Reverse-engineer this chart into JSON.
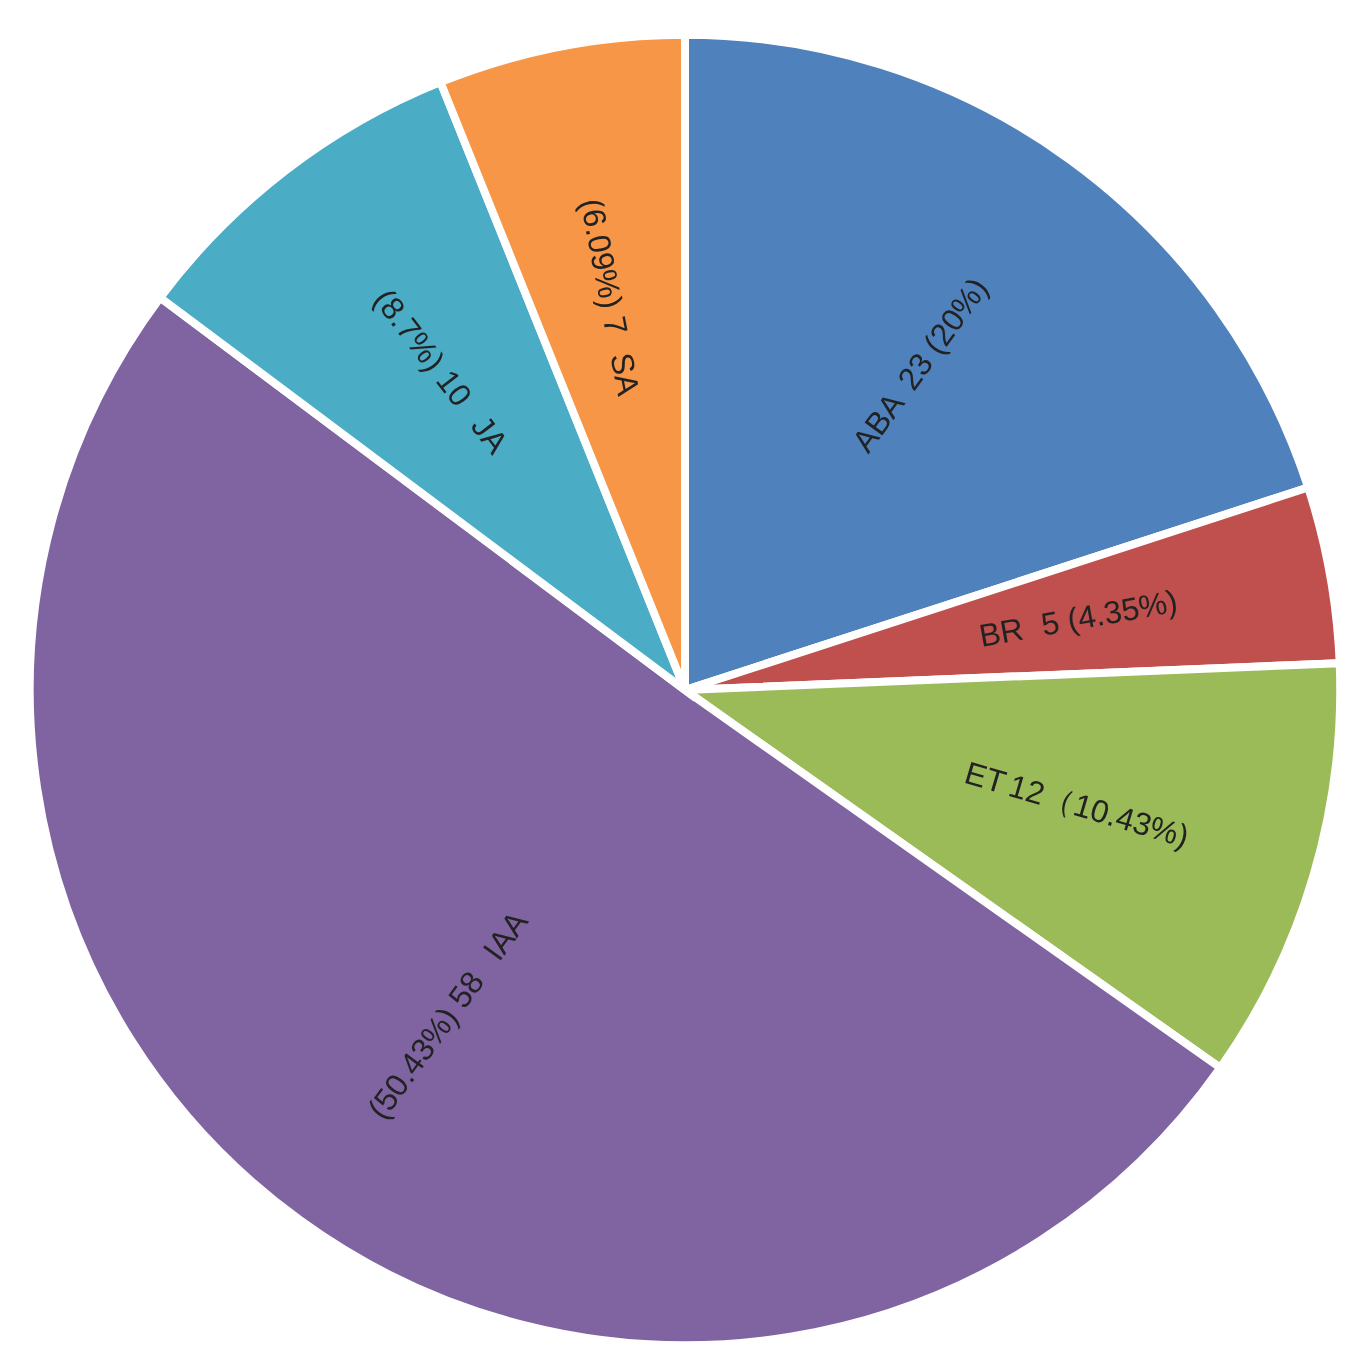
{
  "chart_data": {
    "type": "pie",
    "categories": [
      "ABA",
      "BR",
      "ET",
      "IAA",
      "JA",
      "SA"
    ],
    "values": [
      23,
      5,
      12,
      58,
      10,
      7
    ],
    "colors": [
      "#4f81bd",
      "#c0504d",
      "#9bbb59",
      "#8064a2",
      "#4bacc6",
      "#f79646"
    ],
    "value_labels": [
      "23 (20%)",
      "5 (4.35%)",
      "12（10.43%)",
      "(50.43%) 58",
      "(8.7%) 10",
      "(6.09%) 7"
    ],
    "legend": false
  }
}
